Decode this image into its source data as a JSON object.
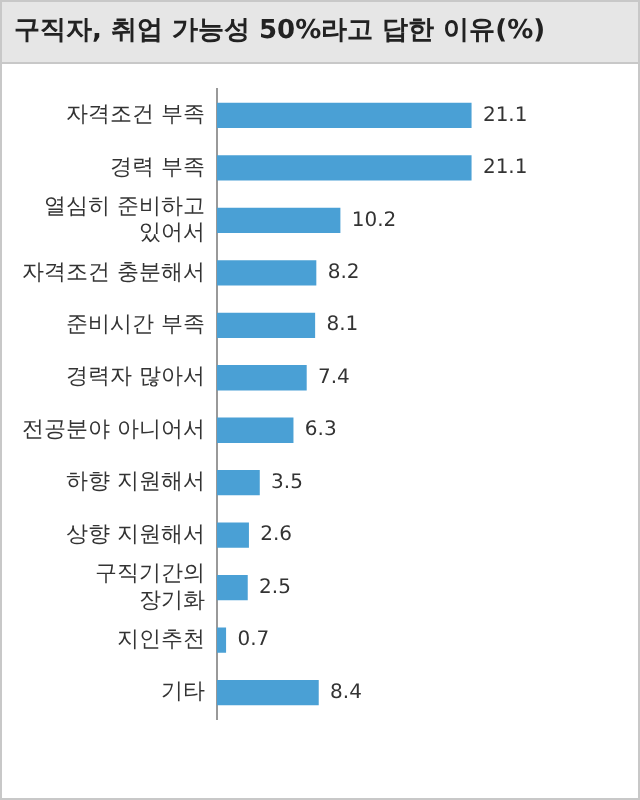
{
  "chart_data": {
    "type": "bar",
    "orientation": "horizontal",
    "title": "구직자, 취업 가능성 50%라고 답한 이유(%)",
    "categories": [
      "자격조건 부족",
      "경력 부족",
      "열심히 준비하고\n있어서",
      "자격조건 충분해서",
      "준비시간 부족",
      "경력자 많아서",
      "전공분야 아니어서",
      "하향 지원해서",
      "상향 지원해서",
      "구직기간의\n장기화",
      "지인추천",
      "기타"
    ],
    "values": [
      21.1,
      21.1,
      10.2,
      8.2,
      8.1,
      7.4,
      6.3,
      3.5,
      2.6,
      2.5,
      0.7,
      8.4
    ],
    "color": "#4aa0d5",
    "data_labels": true,
    "grid": false,
    "legend": false,
    "tick_labels": "y"
  }
}
